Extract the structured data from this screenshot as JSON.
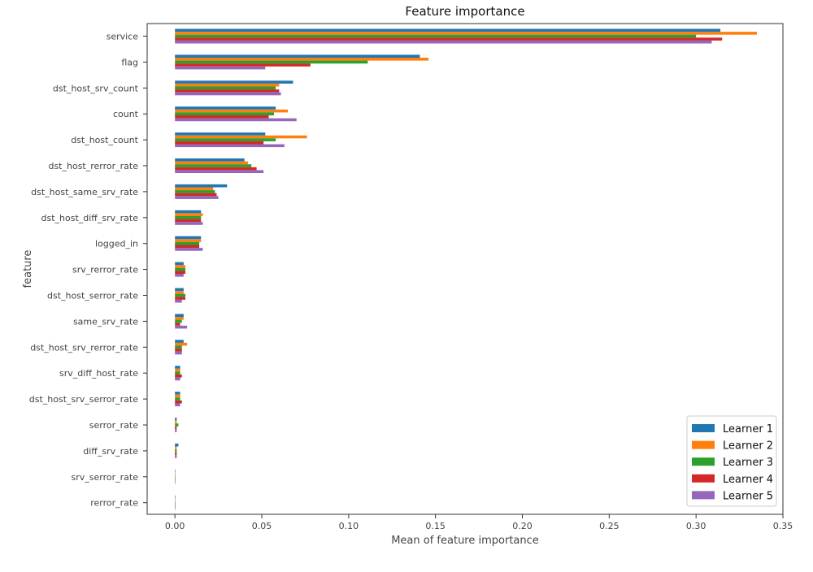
{
  "chart_data": {
    "type": "bar",
    "orientation": "horizontal",
    "title": "Feature importance",
    "xlabel": "Mean of feature importance",
    "ylabel": "feature",
    "xlim": [
      -0.016,
      0.35
    ],
    "xticks": [
      0.0,
      0.05,
      0.1,
      0.15,
      0.2,
      0.25,
      0.3,
      0.35
    ],
    "xtick_labels": [
      "0.00",
      "0.05",
      "0.10",
      "0.15",
      "0.20",
      "0.25",
      "0.30",
      "0.35"
    ],
    "grid": false,
    "legend_position": "bottom-right",
    "categories": [
      "service",
      "flag",
      "dst_host_srv_count",
      "count",
      "dst_host_count",
      "dst_host_rerror_rate",
      "dst_host_same_srv_rate",
      "dst_host_diff_srv_rate",
      "logged_in",
      "srv_rerror_rate",
      "dst_host_serror_rate",
      "same_srv_rate",
      "dst_host_srv_rerror_rate",
      "srv_diff_host_rate",
      "dst_host_srv_serror_rate",
      "serror_rate",
      "diff_srv_rate",
      "srv_serror_rate",
      "rerror_rate"
    ],
    "series": [
      {
        "name": "Learner 1",
        "color": "#1f77b4",
        "values": [
          0.314,
          0.141,
          0.068,
          0.058,
          0.052,
          0.04,
          0.03,
          0.015,
          0.015,
          0.005,
          0.005,
          0.005,
          0.005,
          0.003,
          0.003,
          0.001,
          0.002,
          0.0002,
          0.0001
        ]
      },
      {
        "name": "Learner 2",
        "color": "#ff7f0e",
        "values": [
          0.335,
          0.146,
          0.06,
          0.065,
          0.076,
          0.042,
          0.022,
          0.016,
          0.015,
          0.006,
          0.005,
          0.005,
          0.007,
          0.003,
          0.003,
          0.001,
          0.001,
          0.0003,
          0.0002
        ]
      },
      {
        "name": "Learner 3",
        "color": "#2ca02c",
        "values": [
          0.3,
          0.111,
          0.058,
          0.057,
          0.058,
          0.044,
          0.023,
          0.015,
          0.014,
          0.006,
          0.006,
          0.004,
          0.004,
          0.003,
          0.003,
          0.002,
          0.001,
          0.0002,
          0.0001
        ]
      },
      {
        "name": "Learner 4",
        "color": "#d62728",
        "values": [
          0.315,
          0.078,
          0.06,
          0.054,
          0.051,
          0.047,
          0.024,
          0.015,
          0.014,
          0.006,
          0.006,
          0.003,
          0.004,
          0.004,
          0.004,
          0.001,
          0.001,
          0.0003,
          0.0002
        ]
      },
      {
        "name": "Learner 5",
        "color": "#9467bd",
        "values": [
          0.309,
          0.052,
          0.061,
          0.07,
          0.063,
          0.051,
          0.025,
          0.016,
          0.016,
          0.005,
          0.004,
          0.007,
          0.004,
          0.003,
          0.003,
          0.001,
          0.001,
          0.0002,
          0.0001
        ]
      }
    ]
  }
}
